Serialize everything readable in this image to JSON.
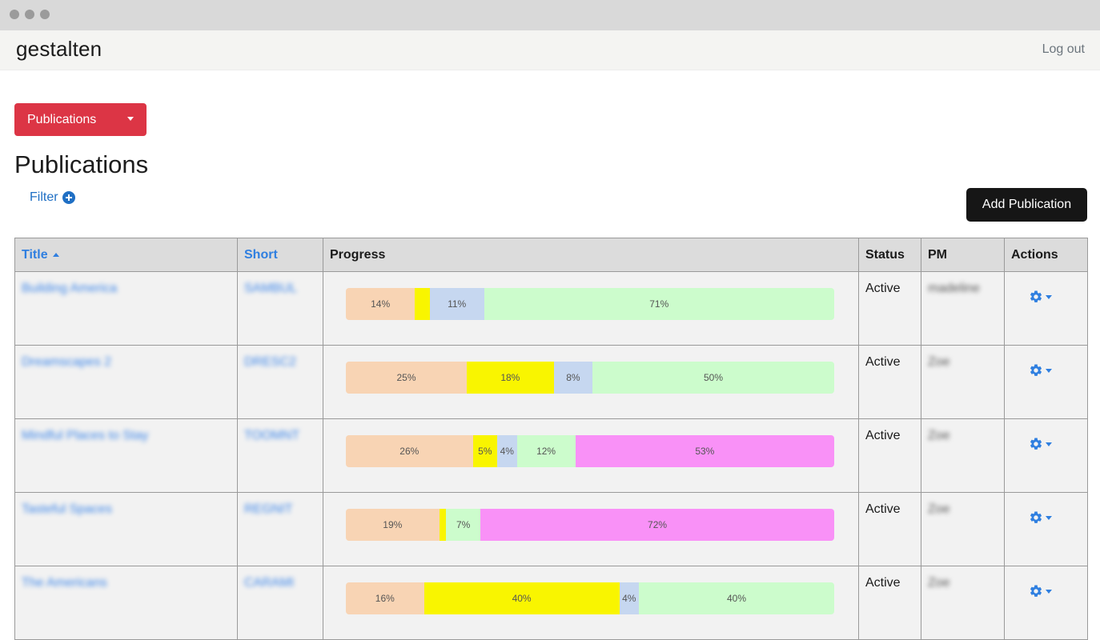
{
  "header": {
    "brand": "gestalten",
    "logout_label": "Log out"
  },
  "nav": {
    "dropdown_label": "Publications"
  },
  "page": {
    "title": "Publications",
    "filter_label": "Filter",
    "add_button_label": "Add Publication"
  },
  "table": {
    "columns": {
      "title": "Title",
      "short": "Short",
      "progress": "Progress",
      "status": "Status",
      "pm": "PM",
      "actions": "Actions"
    },
    "rows": [
      {
        "title": "Building America",
        "short": "SAMBUL",
        "status": "Active",
        "pm": "madeline",
        "progress": [
          {
            "value": 14,
            "label": "14%",
            "color": "#f8d4b4"
          },
          {
            "value": 3,
            "label": "",
            "color": "#f9f500"
          },
          {
            "value": 11,
            "label": "11%",
            "color": "#c6d7f0"
          },
          {
            "value": 71,
            "label": "71%",
            "color": "#ccfccc"
          }
        ]
      },
      {
        "title": "Dreamscapes 2",
        "short": "DRESC2",
        "status": "Active",
        "pm": "Zoe",
        "progress": [
          {
            "value": 25,
            "label": "25%",
            "color": "#f8d4b4"
          },
          {
            "value": 18,
            "label": "18%",
            "color": "#f9f500"
          },
          {
            "value": 8,
            "label": "8%",
            "color": "#c6d7f0"
          },
          {
            "value": 50,
            "label": "50%",
            "color": "#ccfccc"
          }
        ]
      },
      {
        "title": "Mindful Places to Stay",
        "short": "TOOMNT",
        "status": "Active",
        "pm": "Zoe",
        "progress": [
          {
            "value": 26,
            "label": "26%",
            "color": "#f8d4b4"
          },
          {
            "value": 5,
            "label": "5%",
            "color": "#f9f500"
          },
          {
            "value": 4,
            "label": "4%",
            "color": "#c6d7f0"
          },
          {
            "value": 12,
            "label": "12%",
            "color": "#ccfccc"
          },
          {
            "value": 53,
            "label": "53%",
            "color": "#f991f7"
          }
        ]
      },
      {
        "title": "Tasteful Spaces",
        "short": "REGNIT",
        "status": "Active",
        "pm": "Zoe",
        "progress": [
          {
            "value": 19,
            "label": "19%",
            "color": "#f8d4b4"
          },
          {
            "value": 1.4,
            "label": "",
            "color": "#f9f500"
          },
          {
            "value": 7,
            "label": "7%",
            "color": "#ccfccc"
          },
          {
            "value": 72,
            "label": "72%",
            "color": "#f991f7"
          }
        ]
      },
      {
        "title": "The Americans",
        "short": "CARAMI",
        "status": "Active",
        "pm": "Zoe",
        "progress": [
          {
            "value": 16,
            "label": "16%",
            "color": "#f8d4b4"
          },
          {
            "value": 40,
            "label": "40%",
            "color": "#f9f500"
          },
          {
            "value": 4,
            "label": "4%",
            "color": "#c6d7f0"
          },
          {
            "value": 40,
            "label": "40%",
            "color": "#ccfccc"
          }
        ]
      }
    ]
  },
  "colors": {
    "brand_red": "#dc3545",
    "link_blue": "#2f7fe0",
    "dark_button": "#161616"
  }
}
